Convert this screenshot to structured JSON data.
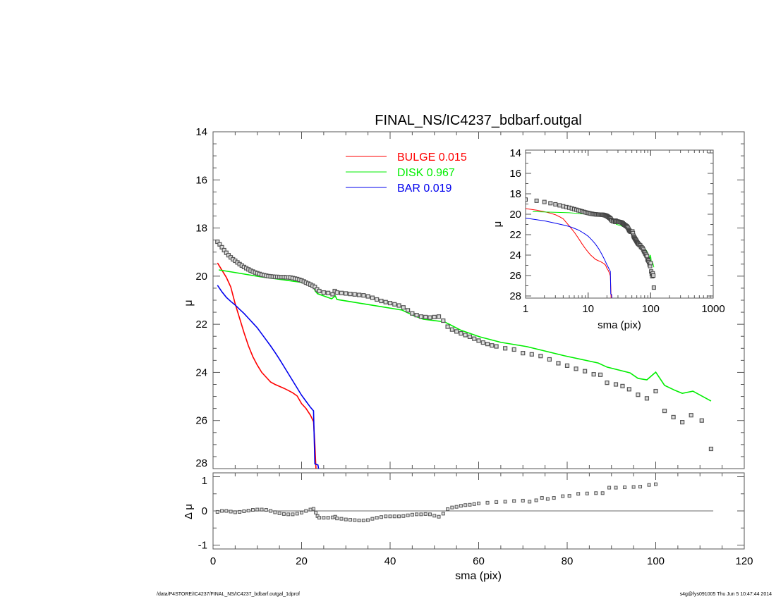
{
  "chart_data": {
    "type": "scatter",
    "title": "FINAL_NS/IC4237_bdbarf.outgal",
    "xlabel": "sma (pix)",
    "ylabel": "μ",
    "residual_ylabel": "Δ μ",
    "xlim": [
      0,
      120
    ],
    "ylim": [
      28,
      14
    ],
    "residual_ylim": [
      -1.1,
      1.1
    ],
    "x_ticks": [
      0,
      20,
      40,
      60,
      80,
      100,
      120
    ],
    "y_ticks": [
      14,
      16,
      18,
      20,
      22,
      24,
      26,
      28
    ],
    "residual_y_ticks": [
      1,
      0,
      -1
    ],
    "legend": [
      {
        "name": "BULGE",
        "value": "0.015",
        "color": "#ff0000"
      },
      {
        "name": "DISK",
        "value": "0.967",
        "color": "#00ee00"
      },
      {
        "name": "BAR",
        "value": "0.019",
        "color": "#0000ee"
      }
    ],
    "observed": {
      "x": [
        1,
        1.5,
        2,
        2.5,
        3,
        3.5,
        4,
        4.5,
        5,
        5.5,
        6,
        6.5,
        7,
        7.5,
        8,
        8.5,
        9,
        9.5,
        10,
        10.5,
        11,
        11.5,
        12,
        12.5,
        13,
        13.5,
        14,
        14.5,
        15,
        15.5,
        16,
        16.5,
        17,
        17.5,
        18,
        18.5,
        19,
        19.5,
        20,
        20.5,
        21,
        21.5,
        22,
        22.5,
        23,
        23.5,
        24,
        25,
        26,
        27,
        27.5,
        28,
        29,
        30,
        31,
        32,
        33,
        34,
        35,
        36,
        37,
        38,
        39,
        40,
        41,
        42,
        43,
        44,
        45,
        46,
        47,
        48,
        49,
        50,
        51,
        52,
        53,
        54,
        55,
        56,
        57,
        58,
        59,
        60,
        61,
        62,
        63,
        64,
        66,
        68,
        70,
        72,
        74,
        76,
        78,
        80,
        82,
        84,
        86,
        87.5,
        89,
        91,
        92.5,
        94,
        96,
        98,
        100,
        102,
        104,
        106,
        108,
        110.4,
        112.5
      ],
      "y": [
        18.57,
        18.68,
        18.8,
        18.92,
        19.03,
        19.13,
        19.22,
        19.3,
        19.36,
        19.43,
        19.5,
        19.56,
        19.62,
        19.67,
        19.72,
        19.77,
        19.81,
        19.85,
        19.88,
        19.91,
        19.94,
        19.96,
        19.98,
        20.0,
        20.01,
        20.02,
        20.03,
        20.03,
        20.04,
        20.04,
        20.04,
        20.05,
        20.05,
        20.06,
        20.08,
        20.1,
        20.12,
        20.15,
        20.18,
        20.22,
        20.27,
        20.31,
        20.35,
        20.4,
        20.45,
        20.55,
        20.62,
        20.68,
        20.7,
        20.75,
        20.62,
        20.68,
        20.7,
        20.72,
        20.74,
        20.76,
        20.78,
        20.8,
        20.84,
        20.9,
        20.97,
        21.03,
        21.08,
        21.12,
        21.17,
        21.22,
        21.3,
        21.42,
        21.55,
        21.62,
        21.68,
        21.7,
        21.72,
        21.7,
        21.68,
        21.85,
        22.1,
        22.22,
        22.3,
        22.38,
        22.45,
        22.52,
        22.6,
        22.68,
        22.76,
        22.82,
        22.88,
        22.92,
        23.0,
        23.05,
        23.2,
        23.25,
        23.32,
        23.46,
        23.62,
        23.72,
        23.85,
        23.95,
        24.08,
        24.1,
        24.43,
        24.5,
        24.57,
        24.7,
        24.93,
        25.08,
        24.78,
        25.6,
        25.86,
        26.07,
        25.78,
        26.0,
        27.18
      ]
    },
    "series": [
      {
        "name": "BULGE",
        "color": "#ff0000",
        "x": [
          1,
          1.5,
          2,
          2.5,
          3,
          3.5,
          4,
          5,
          6,
          7,
          8,
          9,
          10,
          11,
          12,
          13,
          14,
          15,
          16,
          17,
          18,
          19,
          20,
          21,
          22,
          22.7,
          23,
          23.3
        ],
        "y": [
          19.45,
          19.6,
          19.75,
          19.9,
          20.05,
          20.25,
          20.45,
          21.15,
          21.75,
          22.35,
          22.9,
          23.35,
          23.7,
          24.0,
          24.2,
          24.4,
          24.5,
          24.58,
          24.66,
          24.75,
          24.85,
          24.98,
          25.3,
          25.5,
          25.78,
          26.05,
          27.0,
          28.2
        ]
      },
      {
        "name": "DISK",
        "color": "#00ee00",
        "x": [
          1.3,
          5,
          10.8,
          15,
          20,
          22.5,
          23.1,
          23.6,
          26.8,
          27.6,
          28,
          34.7,
          42.7,
          45.4,
          47.5,
          52.3,
          56,
          60.2,
          65,
          70.9,
          79.4,
          87,
          89,
          94.2,
          96,
          98,
          100,
          102,
          104.4,
          106,
          108.4,
          112.5
        ],
        "y": [
          19.74,
          19.85,
          20.03,
          20.13,
          20.26,
          20.38,
          20.62,
          20.73,
          20.94,
          20.82,
          20.97,
          21.17,
          21.41,
          21.65,
          21.79,
          21.9,
          22.25,
          22.52,
          22.75,
          22.93,
          23.31,
          23.61,
          23.78,
          24.02,
          24.25,
          24.31,
          23.99,
          24.54,
          24.75,
          24.87,
          24.78,
          25.19
        ]
      },
      {
        "name": "BAR",
        "color": "#0000ee",
        "x": [
          1,
          2,
          3,
          4,
          5,
          6,
          7,
          8,
          9,
          10,
          11,
          12,
          13,
          14,
          15,
          16,
          17,
          18,
          19,
          20,
          21,
          22,
          22.7,
          23,
          23.7,
          24
        ],
        "y": [
          20.38,
          20.65,
          20.88,
          21.05,
          21.2,
          21.38,
          21.55,
          21.75,
          21.95,
          22.15,
          22.4,
          22.65,
          22.9,
          23.17,
          23.45,
          23.75,
          24.05,
          24.35,
          24.65,
          24.95,
          25.2,
          25.45,
          25.6,
          27.8,
          27.85,
          28.2
        ]
      }
    ],
    "residual": {
      "x": [
        1,
        2,
        3,
        4,
        5,
        6,
        7,
        8,
        9,
        10,
        11,
        12,
        13,
        14,
        15,
        16,
        17,
        18,
        19,
        20,
        21,
        22,
        22.7,
        23.2,
        23.6,
        24,
        25,
        26,
        27,
        27.6,
        28,
        29,
        30,
        31,
        32,
        33,
        34,
        35,
        36,
        37,
        38,
        39,
        40,
        41,
        42,
        43,
        44,
        45,
        46,
        47,
        48,
        49,
        50,
        51,
        52,
        53,
        54,
        55,
        56,
        57,
        58,
        59,
        60,
        62,
        64,
        66,
        68,
        70,
        71.5,
        73,
        74.3,
        75.6,
        77,
        79,
        80.5,
        82.5,
        84.5,
        86.5,
        88,
        89.5,
        91,
        93,
        95,
        96.5,
        98.5,
        100
      ],
      "y": [
        -0.03,
        0.0,
        0.0,
        -0.02,
        -0.04,
        -0.03,
        -0.01,
        0.01,
        0.03,
        0.04,
        0.04,
        0.03,
        0.0,
        -0.04,
        -0.07,
        -0.09,
        -0.1,
        -0.1,
        -0.08,
        -0.05,
        0.0,
        0.04,
        0.06,
        -0.05,
        -0.15,
        -0.2,
        -0.2,
        -0.2,
        -0.19,
        -0.17,
        -0.22,
        -0.23,
        -0.25,
        -0.26,
        -0.27,
        -0.28,
        -0.28,
        -0.27,
        -0.23,
        -0.2,
        -0.18,
        -0.16,
        -0.16,
        -0.16,
        -0.16,
        -0.15,
        -0.13,
        -0.11,
        -0.1,
        -0.1,
        -0.09,
        -0.1,
        -0.14,
        -0.17,
        -0.08,
        0.05,
        0.1,
        0.12,
        0.15,
        0.17,
        0.18,
        0.2,
        0.22,
        0.24,
        0.26,
        0.27,
        0.29,
        0.3,
        0.27,
        0.31,
        0.38,
        0.35,
        0.38,
        0.43,
        0.44,
        0.5,
        0.51,
        0.52,
        0.52,
        0.68,
        0.68,
        0.69,
        0.7,
        0.71,
        0.76,
        0.78
      ]
    },
    "inset": {
      "xlabel": "sma (pix)",
      "ylabel": "μ",
      "xscale": "log",
      "xlim": [
        1,
        1000
      ],
      "ylim": [
        28,
        14
      ],
      "x_ticks": [
        "1",
        "10",
        "100",
        "1000"
      ],
      "y_ticks": [
        14,
        16,
        18,
        20,
        22,
        24,
        26,
        28
      ]
    }
  },
  "footer": {
    "path": "/data/P4STORE/IC4237/FINAL_NS/IC4237_bdbarf.outgal_1dprof",
    "stamp": "s4g@fys091005  Thu Jun  5 10:47:44 2014"
  }
}
